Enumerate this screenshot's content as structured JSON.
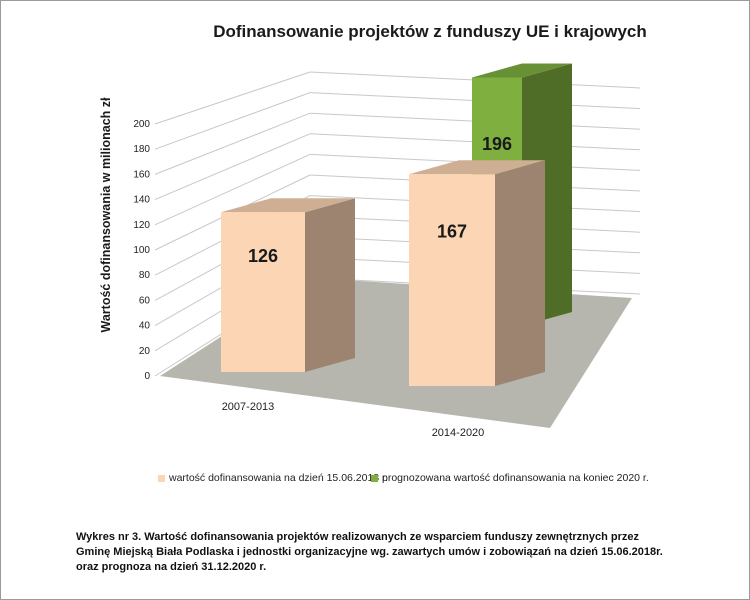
{
  "chart_data": {
    "type": "bar",
    "title": "Dofinansowanie projektów z funduszy UE i krajowych",
    "ylabel": "Wartość dofinansowania w milionach zł",
    "ylim": [
      0,
      200
    ],
    "yticks": [
      "0",
      "20",
      "40",
      "60",
      "80",
      "100",
      "120",
      "140",
      "160",
      "180",
      "200"
    ],
    "categories": [
      "2007-2013",
      "2014-2020"
    ],
    "series": [
      {
        "name": "wartość dofinansowania na dzień 15.06.2018 r.",
        "color": "#fcd5b4",
        "values": [
          126,
          167
        ]
      },
      {
        "name": "prognozowana wartość dofinansowania na koniec 2020 r.",
        "color": "#7faf3f",
        "values": [
          null,
          196
        ]
      }
    ],
    "data_labels": [
      "126",
      "167",
      "196"
    ],
    "grid": true,
    "legend_position": "bottom"
  },
  "caption": "Wykres nr 3. Wartość dofinansowania projektów realizowanych ze wsparciem funduszy zewnętrznych przez Gminę Miejską Biała Podlaska i jednostki organizacyjne wg. zawartych umów i zobowiązań na dzień 15.06.2018r. oraz prognoza na dzień 31.12.2020 r."
}
